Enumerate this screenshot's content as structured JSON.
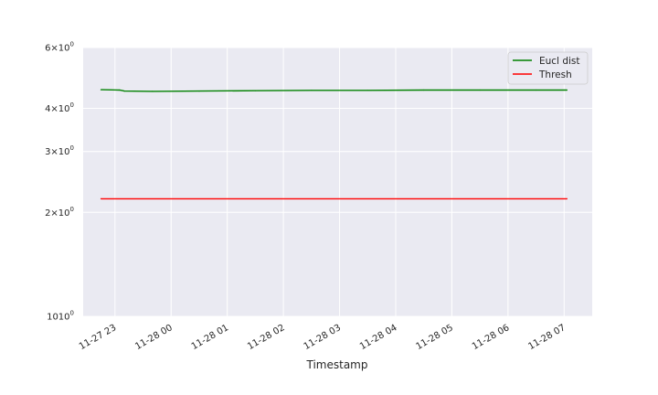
{
  "chart_data": {
    "type": "line",
    "xlabel": "Timestamp",
    "ylabel": "",
    "yscale": "log",
    "ylim": [
      1,
      6
    ],
    "xlim": [
      "2023-11-27 22:26",
      "2023-11-28 07:30"
    ],
    "grid": true,
    "legend_position": "top-right",
    "x_tick_labels": [
      "11-27 23",
      "11-28 00",
      "11-28 01",
      "11-28 02",
      "11-28 03",
      "11-28 04",
      "11-28 05",
      "11-28 06",
      "11-28 07"
    ],
    "y_tick_labels": [
      {
        "value": 6,
        "mantissa": "6",
        "exp": "0"
      },
      {
        "value": 4,
        "mantissa": "4",
        "exp": "0"
      },
      {
        "value": 3,
        "mantissa": "3",
        "exp": "0"
      },
      {
        "value": 2,
        "mantissa": "2",
        "exp": "0"
      },
      {
        "value": 1,
        "mantissa": "10",
        "exp": "0"
      }
    ],
    "series": [
      {
        "name": "Eucl dist",
        "color": "#008000",
        "points": [
          [
            "2023-11-27 22:45",
            4.53
          ],
          [
            "2023-11-27 23:05",
            4.52
          ],
          [
            "2023-11-27 23:10",
            4.49
          ],
          [
            "2023-11-27 23:40",
            4.48
          ],
          [
            "2023-11-28 00:30",
            4.49
          ],
          [
            "2023-11-28 01:30",
            4.5
          ],
          [
            "2023-11-28 02:30",
            4.51
          ],
          [
            "2023-11-28 03:30",
            4.51
          ],
          [
            "2023-11-28 04:30",
            4.52
          ],
          [
            "2023-11-28 05:30",
            4.52
          ],
          [
            "2023-11-28 06:30",
            4.52
          ],
          [
            "2023-11-28 07:03",
            4.52
          ]
        ]
      },
      {
        "name": "Thresh",
        "color": "#ff0000",
        "points": [
          [
            "2023-11-27 22:45",
            2.19
          ],
          [
            "2023-11-28 07:03",
            2.19
          ]
        ]
      }
    ]
  }
}
